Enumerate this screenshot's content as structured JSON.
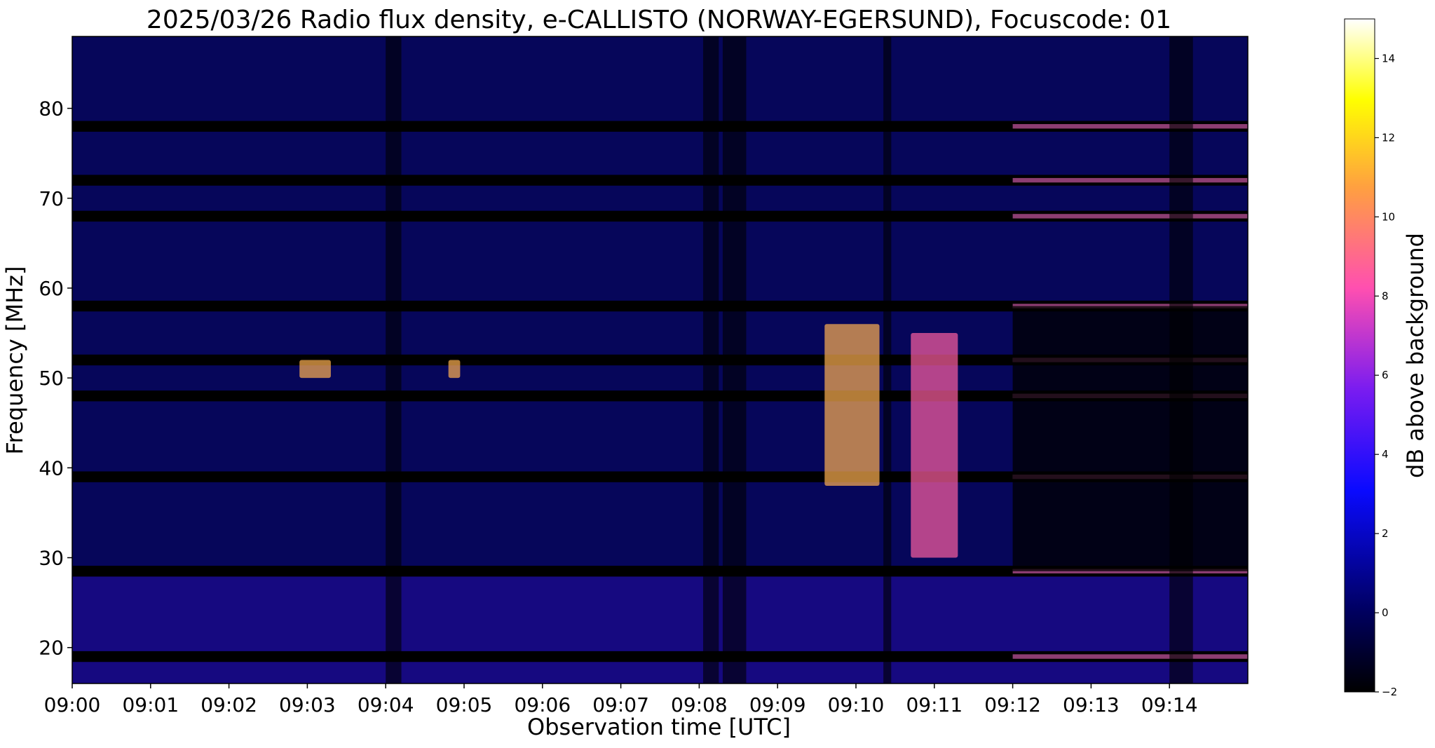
{
  "chart_data": {
    "type": "heatmap",
    "title": "2025/03/26  Radio flux density, e-CALLISTO (NORWAY-EGERSUND), Focuscode: 01",
    "xlabel": "Observation time [UTC]",
    "ylabel": "Frequency [MHz]",
    "x_ticks": [
      "09:00",
      "09:01",
      "09:02",
      "09:03",
      "09:04",
      "09:05",
      "09:06",
      "09:07",
      "09:08",
      "09:09",
      "09:10",
      "09:11",
      "09:12",
      "09:13",
      "09:14"
    ],
    "x_range_minutes": [
      0,
      15
    ],
    "y_ticks": [
      20,
      30,
      40,
      50,
      60,
      70,
      80
    ],
    "ylim": [
      16,
      88
    ],
    "colorbar": {
      "label": "dB above background",
      "range": [
        -2,
        15
      ],
      "ticks": [
        -2,
        0,
        2,
        4,
        6,
        8,
        10,
        12,
        14
      ],
      "colormap": "gnuplot2",
      "colors": [
        "#000000",
        "#0000ff",
        "#8a2be2",
        "#ff5fa0",
        "#ffa040",
        "#ffff00",
        "#ffffff"
      ]
    },
    "interference_bands_mhz": [
      78,
      72,
      68,
      58,
      52,
      48,
      39,
      28.5,
      19
    ],
    "bursts": [
      {
        "start_min": 2.9,
        "end_min": 3.3,
        "freq_mhz": [
          50,
          52
        ],
        "db": 12
      },
      {
        "start_min": 4.8,
        "end_min": 4.95,
        "freq_mhz": [
          50,
          52
        ],
        "db": 12
      },
      {
        "start_min": 9.6,
        "end_min": 10.3,
        "freq_mhz": [
          38,
          56
        ],
        "db": 12
      },
      {
        "start_min": 10.7,
        "end_min": 11.3,
        "freq_mhz": [
          30,
          55
        ],
        "db": 9
      }
    ]
  }
}
